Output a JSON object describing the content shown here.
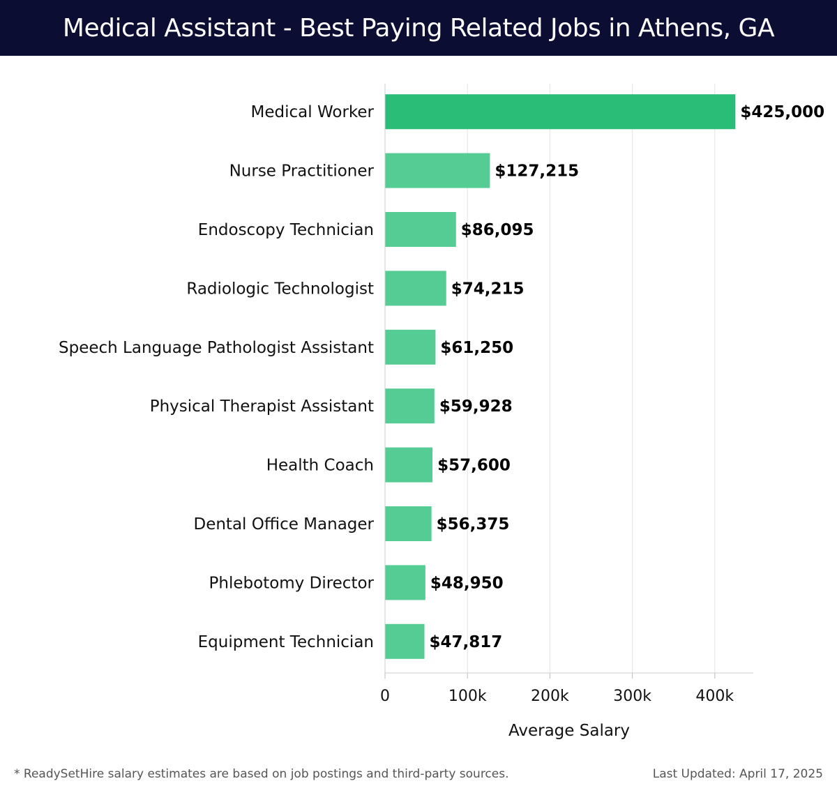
{
  "header": {
    "title": "Medical Assistant - Best Paying Related Jobs in Athens, GA"
  },
  "footer": {
    "note": "* ReadySetHire salary estimates are based on job postings and third-party sources.",
    "updated": "Last Updated: April 17, 2025"
  },
  "colors": {
    "highlight": "#2abd77",
    "bar": "#55cc93",
    "title_bg": "#0b0d33",
    "grid": "#e3e3e3"
  },
  "chart_data": {
    "type": "bar",
    "orientation": "horizontal",
    "title": "Medical Assistant - Best Paying Related Jobs in Athens, GA",
    "xlabel": "Average Salary",
    "ylabel": "",
    "xlim": [
      0,
      445000
    ],
    "grid": true,
    "x_ticks": [
      0,
      100000,
      200000,
      300000,
      400000
    ],
    "x_tick_labels": [
      "0",
      "100k",
      "200k",
      "300k",
      "400k"
    ],
    "categories": [
      "Medical Worker",
      "Nurse Practitioner",
      "Endoscopy Technician",
      "Radiologic Technologist",
      "Speech Language Pathologist Assistant",
      "Physical Therapist Assistant",
      "Health Coach",
      "Dental Office Manager",
      "Phlebotomy Director",
      "Equipment Technician"
    ],
    "values": [
      425000,
      127215,
      86095,
      74215,
      61250,
      59928,
      57600,
      56375,
      48950,
      47817
    ],
    "value_labels": [
      "$425,000",
      "$127,215",
      "$86,095",
      "$74,215",
      "$61,250",
      "$59,928",
      "$57,600",
      "$56,375",
      "$48,950",
      "$47,817"
    ]
  }
}
